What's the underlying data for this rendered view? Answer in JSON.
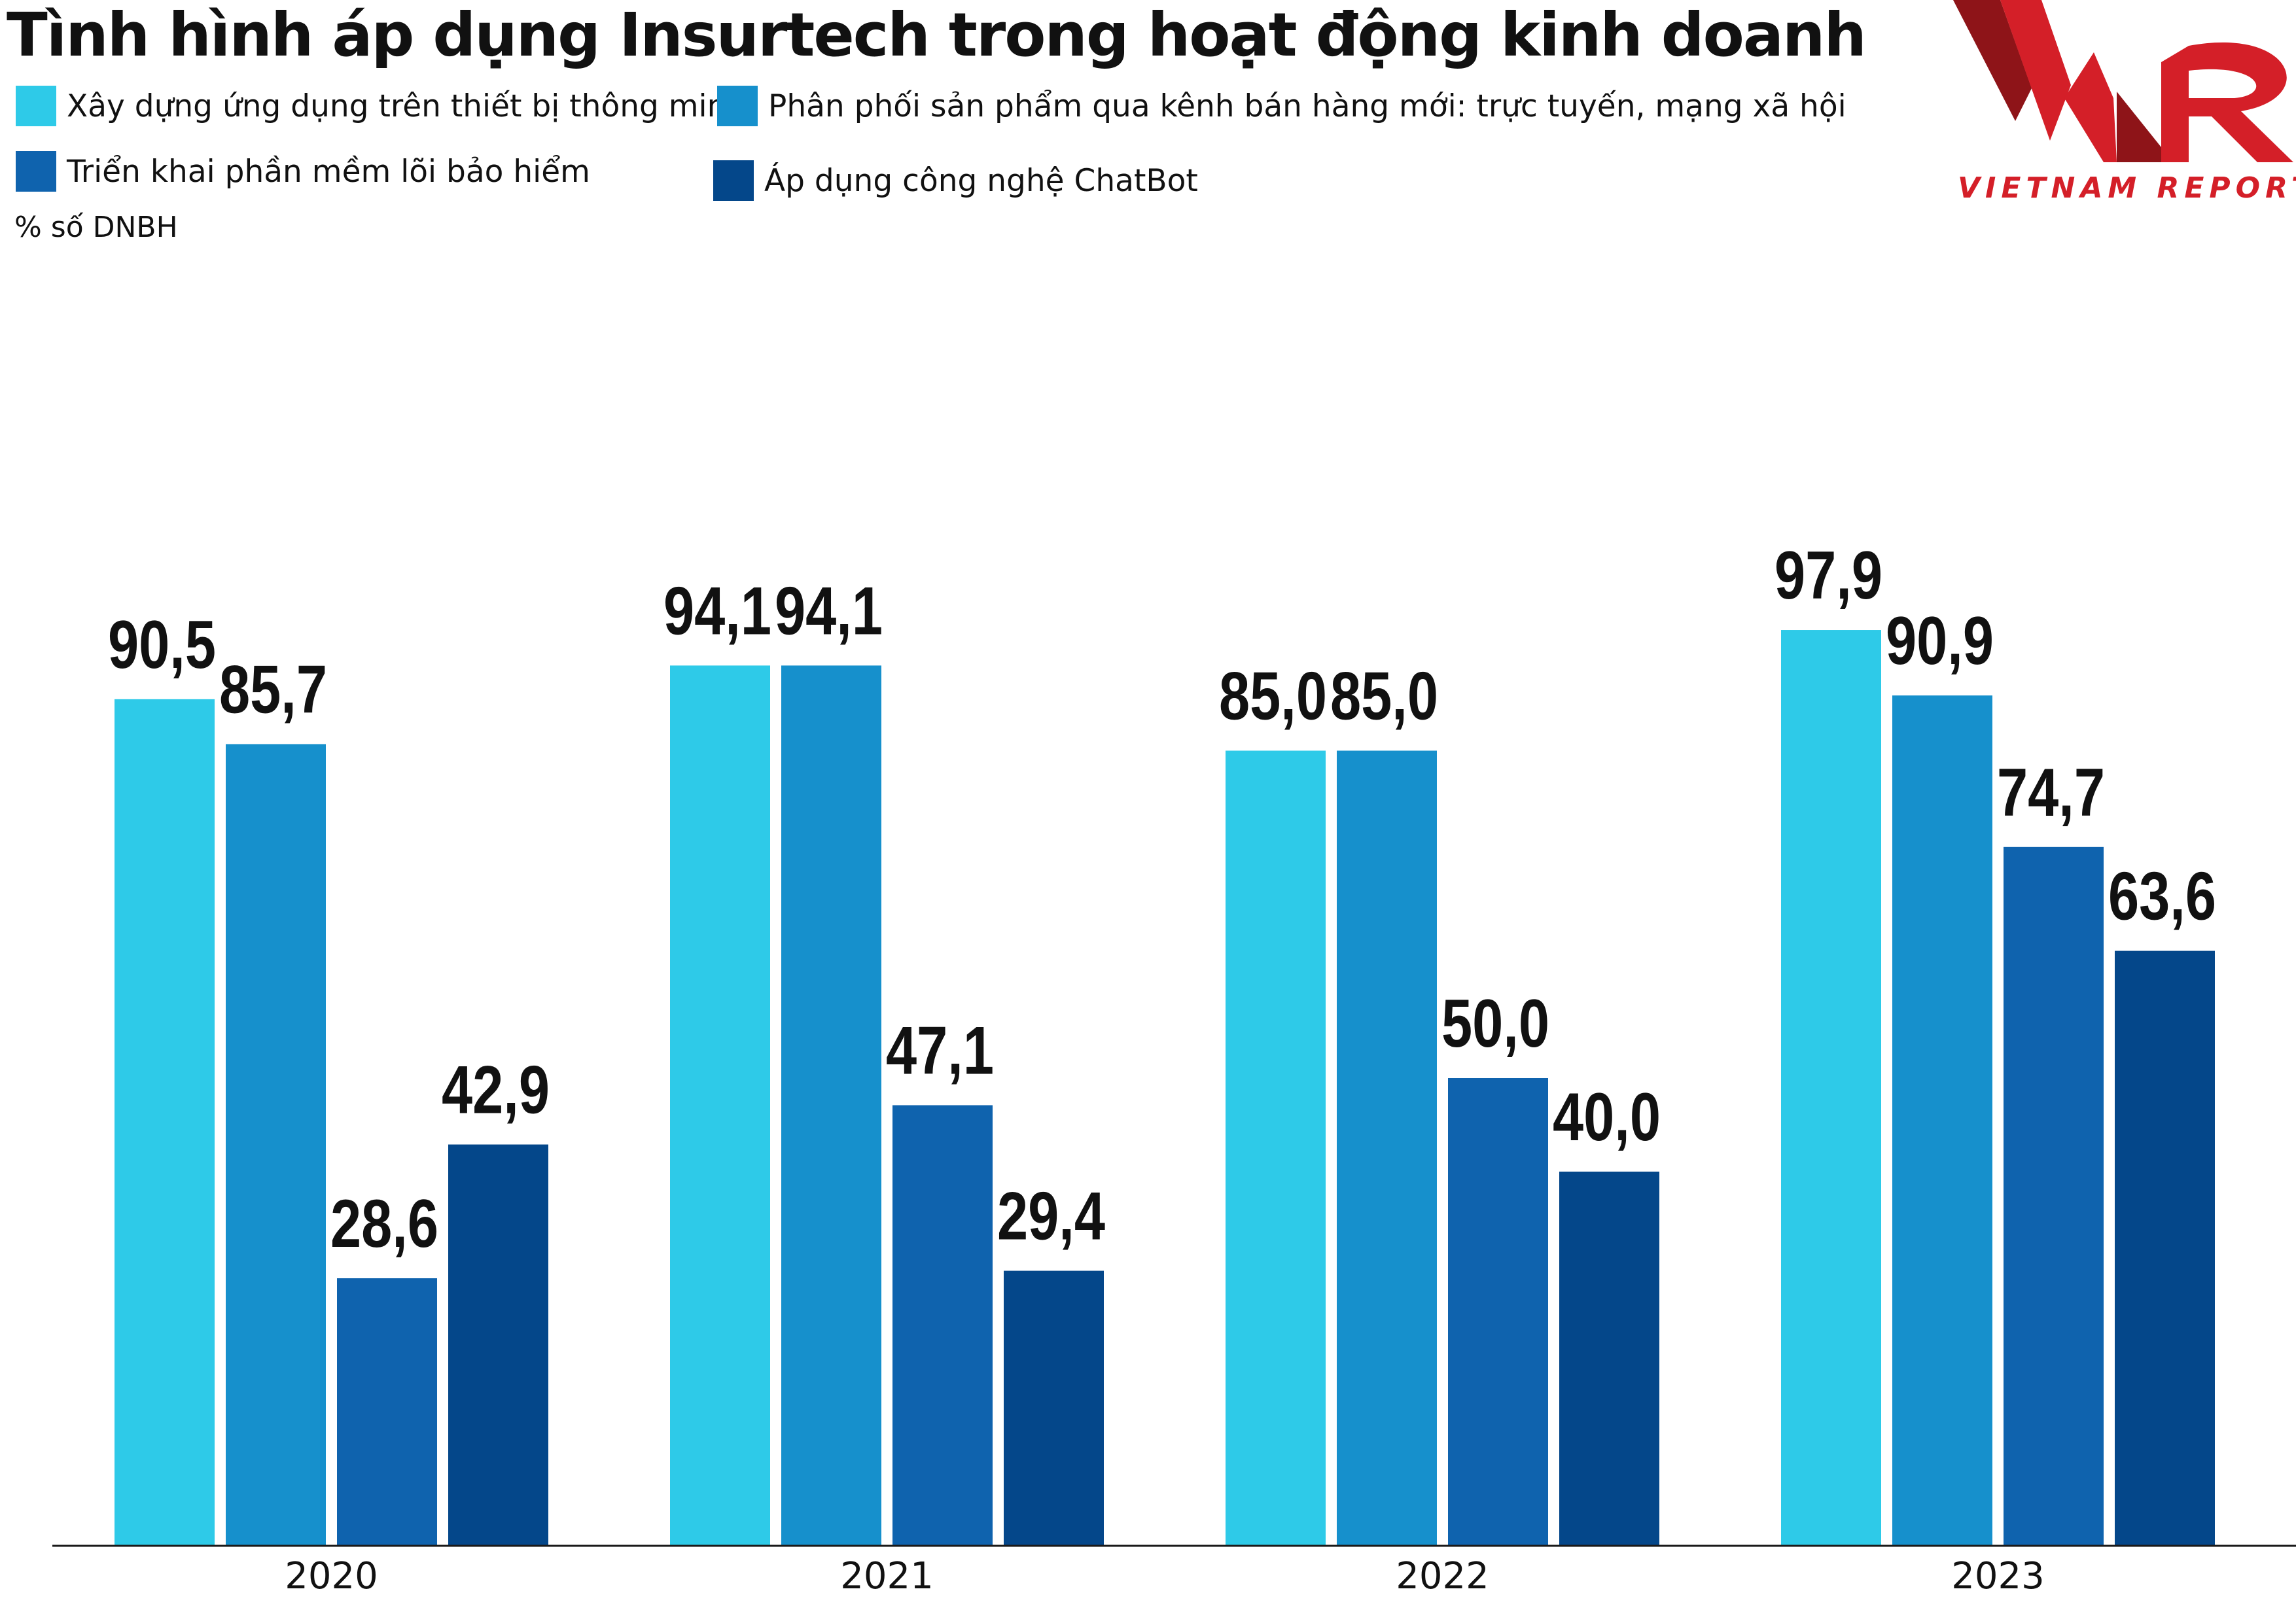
{
  "chart_data": {
    "type": "bar",
    "title": "Tình hình áp dụng Insurtech trong hoạt động kinh doanh",
    "ylabel": "% số DNBH",
    "xlabel": "",
    "ylim": [
      0,
      100
    ],
    "grid": false,
    "legend_position": "top-left",
    "categories": [
      "2020",
      "2021",
      "2022",
      "2023"
    ],
    "series": [
      {
        "name": "Xây dựng ứng dụng trên thiết bị thông minh",
        "color": "#2ECAE8",
        "values": [
          90.5,
          94.1,
          85.0,
          97.9
        ],
        "labels": [
          "90,5",
          "94,1",
          "85,0",
          "97,9"
        ]
      },
      {
        "name": "Phân phối sản phẩm qua kênh bán hàng mới: trực tuyến, mạng xã hội",
        "color": "#1690CC",
        "values": [
          85.7,
          94.1,
          85.0,
          90.9
        ],
        "labels": [
          "85,7",
          "94,1",
          "85,0",
          "90,9"
        ]
      },
      {
        "name": "Triển khai phần mềm lõi bảo hiểm",
        "color": "#0F63AE",
        "values": [
          28.6,
          47.1,
          50.0,
          74.7
        ],
        "labels": [
          "28,6",
          "47,1",
          "50,0",
          "74,7"
        ]
      },
      {
        "name": "Áp dụng công nghệ ChatBot",
        "color": "#04478A",
        "values": [
          42.9,
          29.4,
          40.0,
          63.6
        ],
        "labels": [
          "42,9",
          "29,4",
          "40,0",
          "63,6"
        ]
      }
    ]
  },
  "logo": {
    "text": "VIETNAM REPORT",
    "brand_color": "#D41F28",
    "dark_color": "#8E1418"
  }
}
